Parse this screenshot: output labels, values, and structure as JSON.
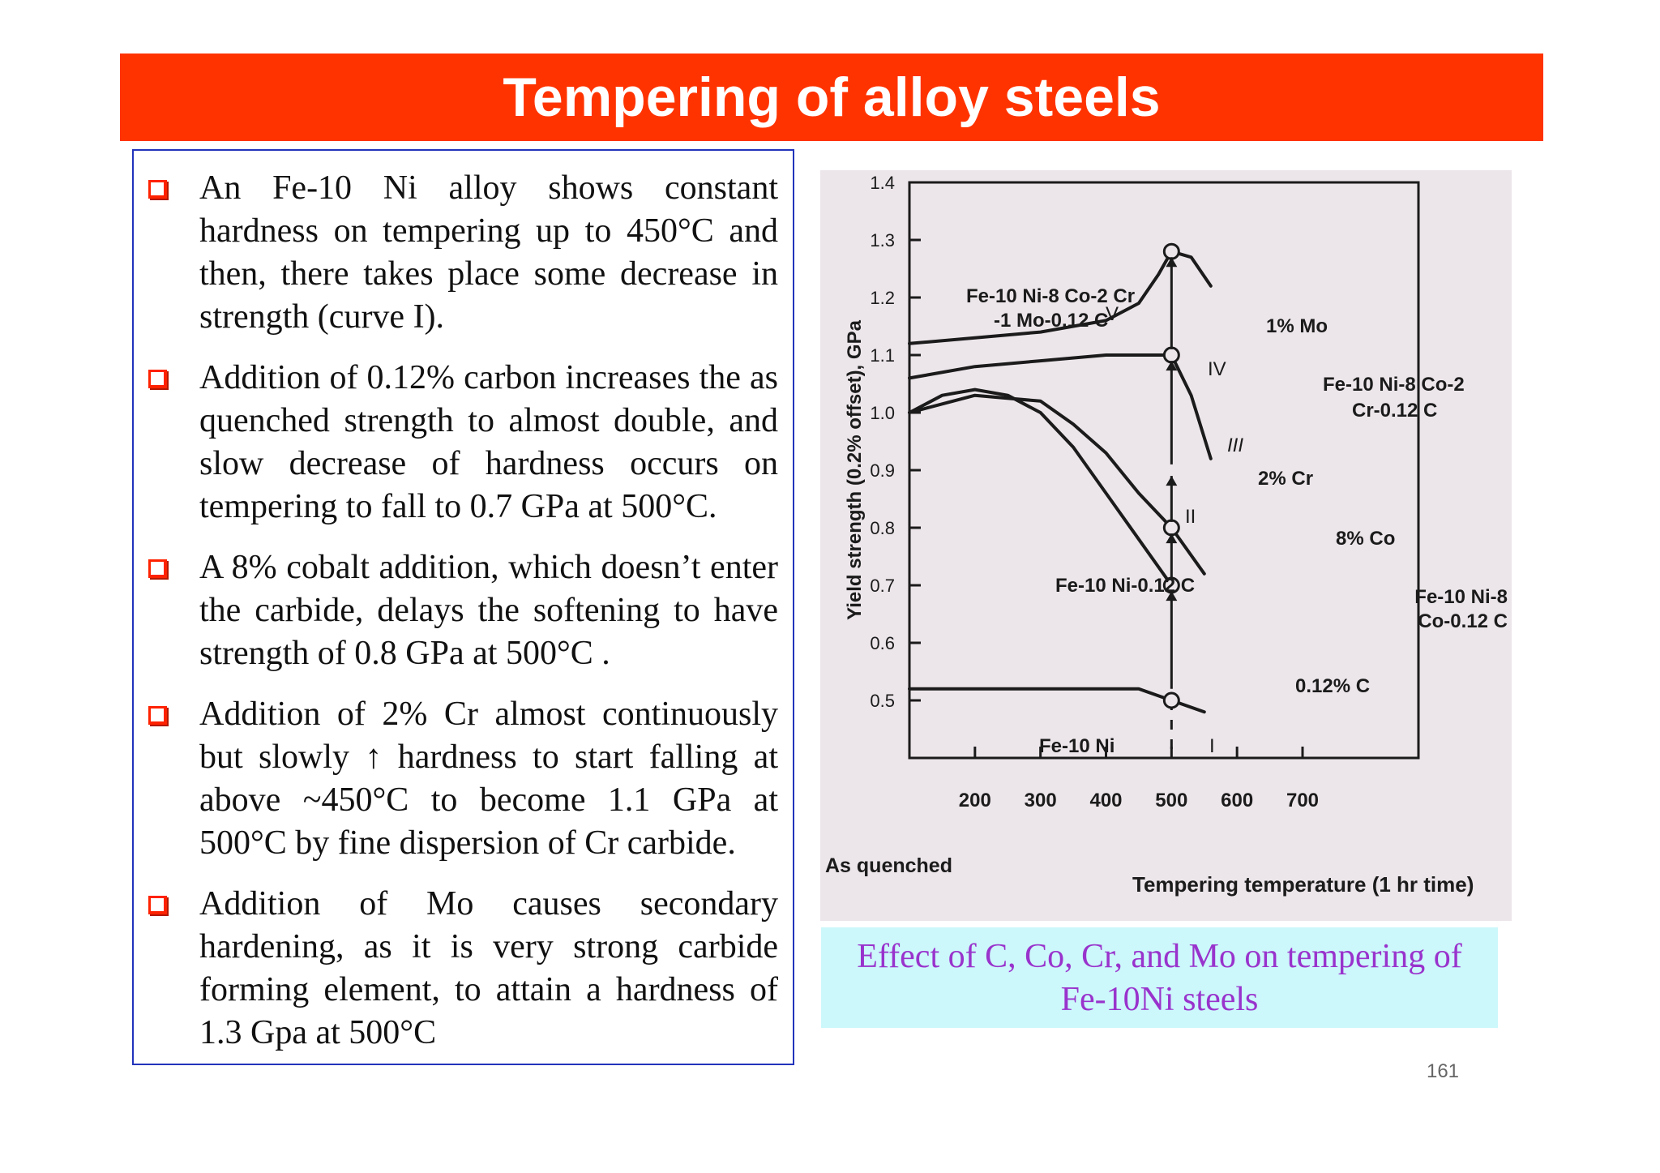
{
  "slide": {
    "title": "Tempering of alloy steels",
    "page_number": "161",
    "bullets": [
      "An Fe-10 Ni alloy shows constant hardness on tempering up to 450°C and then, there takes place some decrease in strength (curve I).",
      "Addition of 0.12% carbon increases the as quenched strength to almost double, and slow decrease of hardness occurs on tempering to fall to 0.7 GPa at 500°C.",
      "A 8% cobalt addition, which doesn’t enter the carbide, delays the softening to have strength of 0.8 GPa at 500°C .",
      "Addition of 2% Cr almost continuously but slowly ↑ hardness to start falling at above ~450°C to become 1.1 GPa at 500°C by fine dispersion of Cr carbide.",
      "Addition of Mo causes secondary hardening, as it is very strong carbide forming element, to attain a hardness of 1.3 Gpa at 500°C"
    ],
    "caption_line1": "Effect of C, Co, Cr,  and Mo on tempering of",
    "caption_line2": "Fe-10Ni steels"
  },
  "chart_data": {
    "type": "line",
    "xlabel": "Tempering temperature (1 hr time)",
    "ylabel": "Yield strength (0.2% offset), GPa",
    "x_ticks": [
      200,
      300,
      400,
      500,
      600,
      700
    ],
    "y_ticks": [
      0.5,
      0.6,
      0.7,
      0.8,
      0.9,
      1.0,
      1.1,
      1.2,
      1.3,
      1.4
    ],
    "xlim": [
      100,
      800
    ],
    "ylim": [
      0.4,
      1.4
    ],
    "x_origin_label": "As quenched",
    "series": [
      {
        "name": "I",
        "label": "Fe-10 Ni",
        "x": [
          100,
          200,
          300,
          400,
          450,
          500,
          550
        ],
        "y": [
          0.52,
          0.52,
          0.52,
          0.52,
          0.52,
          0.5,
          0.48
        ]
      },
      {
        "name": "II",
        "label": "Fe-10 Ni-0.12 C",
        "x": [
          100,
          150,
          200,
          250,
          300,
          350,
          400,
          450,
          500
        ],
        "y": [
          1.0,
          1.03,
          1.04,
          1.03,
          1.0,
          0.94,
          0.86,
          0.78,
          0.7
        ]
      },
      {
        "name": "III",
        "label": "Fe-10 Ni-8 Co-0.12 C",
        "x": [
          100,
          200,
          300,
          350,
          400,
          450,
          500,
          550
        ],
        "y": [
          1.0,
          1.03,
          1.02,
          0.98,
          0.93,
          0.86,
          0.8,
          0.72
        ]
      },
      {
        "name": "IV",
        "label": "Fe-10 Ni-8 Co-2 Cr-0.12 C",
        "x": [
          100,
          200,
          300,
          400,
          450,
          500,
          530,
          560
        ],
        "y": [
          1.06,
          1.08,
          1.09,
          1.1,
          1.1,
          1.1,
          1.03,
          0.92
        ]
      },
      {
        "name": "V",
        "label": "Fe-10 Ni-8 Co-2 Cr -1 Mo-0.12 C",
        "x": [
          100,
          200,
          300,
          400,
          450,
          480,
          500,
          530,
          560
        ],
        "y": [
          1.12,
          1.13,
          1.14,
          1.16,
          1.19,
          1.24,
          1.28,
          1.27,
          1.22
        ]
      }
    ],
    "annotations": [
      "1% Mo",
      "2% Cr",
      "8% Co",
      "0.12% C"
    ]
  }
}
